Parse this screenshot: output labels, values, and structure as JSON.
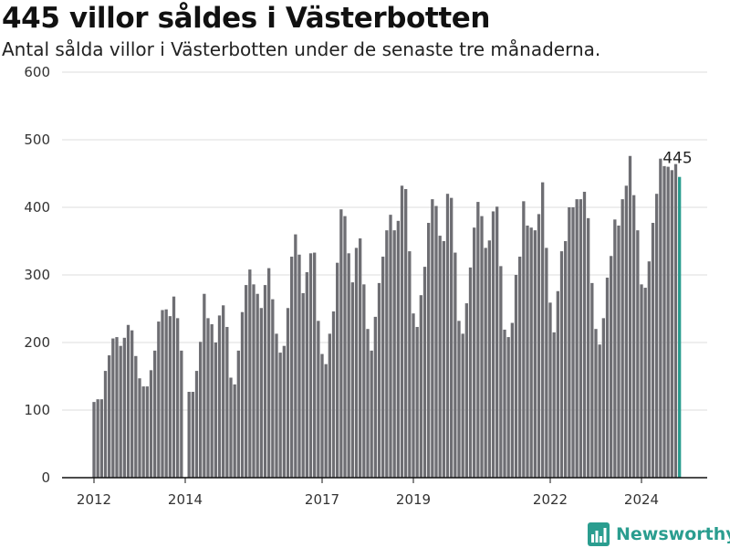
{
  "header": {
    "title": "445 villor såldes i Västerbotten",
    "subtitle": "Antal sålda villor i Västerbotten under de senaste tre månaderna."
  },
  "brand": {
    "name": "Newsworthy",
    "logo_icon": "bar-chart-logo-icon",
    "color": "#2a9d8f"
  },
  "colors": {
    "bar": "#6e6e73",
    "highlight": "#2a9d8f",
    "grid": "#dddddd",
    "axis": "#111111"
  },
  "chart_data": {
    "type": "bar",
    "title": "",
    "xlabel": "",
    "ylabel": "",
    "ylim": [
      0,
      600
    ],
    "yticks": [
      0,
      100,
      200,
      300,
      400,
      500,
      600
    ],
    "grid": true,
    "x_tick_labels": [
      "2012",
      "2014",
      "2017",
      "2019",
      "2022",
      "2024"
    ],
    "x_tick_years": [
      2012,
      2014,
      2017,
      2019,
      2022,
      2024
    ],
    "start_year": 2012,
    "highlight_last": true,
    "last_value_label": "445",
    "values": [
      112,
      116,
      116,
      158,
      181,
      206,
      208,
      195,
      207,
      226,
      218,
      180,
      147,
      135,
      135,
      159,
      188,
      231,
      248,
      249,
      239,
      268,
      236,
      188,
      null,
      127,
      127,
      158,
      201,
      272,
      236,
      227,
      200,
      240,
      255,
      223,
      148,
      138,
      188,
      245,
      285,
      308,
      286,
      272,
      251,
      285,
      310,
      264,
      213,
      185,
      195,
      251,
      327,
      360,
      330,
      273,
      304,
      332,
      333,
      232,
      183,
      168,
      213,
      246,
      318,
      397,
      387,
      332,
      289,
      340,
      354,
      286,
      220,
      188,
      238,
      288,
      327,
      366,
      389,
      366,
      380,
      432,
      427,
      335,
      243,
      223,
      270,
      312,
      377,
      412,
      402,
      358,
      350,
      420,
      414,
      333,
      232,
      213,
      258,
      311,
      370,
      408,
      387,
      340,
      351,
      394,
      401,
      313,
      219,
      208,
      229,
      300,
      327,
      409,
      373,
      370,
      366,
      390,
      437,
      340,
      259,
      215,
      276,
      335,
      350,
      400,
      400,
      412,
      412,
      423,
      384,
      288,
      220,
      197,
      236,
      296,
      328,
      382,
      373,
      412,
      432,
      476,
      418,
      366,
      286,
      281,
      320,
      377,
      420,
      472,
      461,
      460,
      455,
      464,
      445
    ]
  }
}
